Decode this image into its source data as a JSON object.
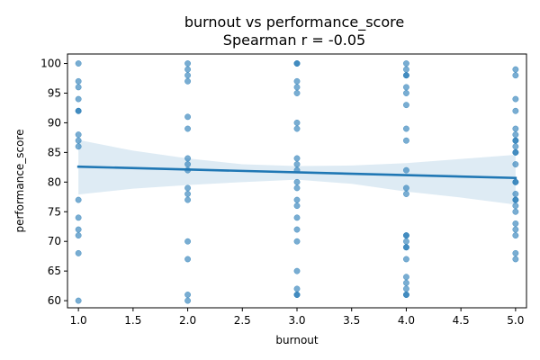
{
  "chart_data": {
    "type": "scatter",
    "title": "burnout vs performance_score",
    "subtitle": "Spearman r = -0.05",
    "xlabel": "burnout",
    "ylabel": "performance_score",
    "xlim": [
      0.9,
      5.1
    ],
    "ylim": [
      58.8,
      101.6
    ],
    "xticks": [
      "1.0",
      "1.5",
      "2.0",
      "2.5",
      "3.0",
      "3.5",
      "4.0",
      "4.5",
      "5.0"
    ],
    "yticks": [
      "60",
      "65",
      "70",
      "75",
      "80",
      "85",
      "90",
      "95",
      "100"
    ],
    "grid": false,
    "legend": "none",
    "colors": {
      "points": "#1f77b4",
      "line": "#1f77b4",
      "band": "#1f77b4"
    },
    "points": [
      [
        1,
        100
      ],
      [
        1,
        97
      ],
      [
        1,
        96
      ],
      [
        1,
        94
      ],
      [
        1,
        92
      ],
      [
        1,
        92
      ],
      [
        1,
        88
      ],
      [
        1,
        87
      ],
      [
        1,
        86
      ],
      [
        1,
        77
      ],
      [
        1,
        74
      ],
      [
        1,
        72
      ],
      [
        1,
        71
      ],
      [
        1,
        68
      ],
      [
        1,
        60
      ],
      [
        2,
        100
      ],
      [
        2,
        99
      ],
      [
        2,
        98
      ],
      [
        2,
        97
      ],
      [
        2,
        91
      ],
      [
        2,
        89
      ],
      [
        2,
        84
      ],
      [
        2,
        83
      ],
      [
        2,
        82
      ],
      [
        2,
        79
      ],
      [
        2,
        78
      ],
      [
        2,
        77
      ],
      [
        2,
        70
      ],
      [
        2,
        67
      ],
      [
        2,
        61
      ],
      [
        2,
        60
      ],
      [
        3,
        100
      ],
      [
        3,
        100
      ],
      [
        3,
        97
      ],
      [
        3,
        96
      ],
      [
        3,
        95
      ],
      [
        3,
        90
      ],
      [
        3,
        89
      ],
      [
        3,
        84
      ],
      [
        3,
        83
      ],
      [
        3,
        82
      ],
      [
        3,
        80
      ],
      [
        3,
        79
      ],
      [
        3,
        77
      ],
      [
        3,
        76
      ],
      [
        3,
        74
      ],
      [
        3,
        72
      ],
      [
        3,
        70
      ],
      [
        3,
        65
      ],
      [
        3,
        62
      ],
      [
        3,
        61
      ],
      [
        3,
        61
      ],
      [
        4,
        100
      ],
      [
        4,
        99
      ],
      [
        4,
        98
      ],
      [
        4,
        98
      ],
      [
        4,
        96
      ],
      [
        4,
        95
      ],
      [
        4,
        93
      ],
      [
        4,
        89
      ],
      [
        4,
        87
      ],
      [
        4,
        82
      ],
      [
        4,
        79
      ],
      [
        4,
        78
      ],
      [
        4,
        71
      ],
      [
        4,
        71
      ],
      [
        4,
        70
      ],
      [
        4,
        69
      ],
      [
        4,
        69
      ],
      [
        4,
        67
      ],
      [
        4,
        64
      ],
      [
        4,
        63
      ],
      [
        4,
        62
      ],
      [
        4,
        61
      ],
      [
        4,
        61
      ],
      [
        5,
        99
      ],
      [
        5,
        98
      ],
      [
        5,
        94
      ],
      [
        5,
        92
      ],
      [
        5,
        89
      ],
      [
        5,
        88
      ],
      [
        5,
        87
      ],
      [
        5,
        87
      ],
      [
        5,
        86
      ],
      [
        5,
        85
      ],
      [
        5,
        85
      ],
      [
        5,
        83
      ],
      [
        5,
        80
      ],
      [
        5,
        80
      ],
      [
        5,
        78
      ],
      [
        5,
        77
      ],
      [
        5,
        77
      ],
      [
        5,
        76
      ],
      [
        5,
        75
      ],
      [
        5,
        73
      ],
      [
        5,
        72
      ],
      [
        5,
        71
      ],
      [
        5,
        68
      ],
      [
        5,
        67
      ]
    ],
    "regression": {
      "x": [
        1.0,
        5.0
      ],
      "y": [
        82.6,
        80.7
      ]
    },
    "confidence_band": {
      "x": [
        1.0,
        1.5,
        2.0,
        2.5,
        3.0,
        3.5,
        4.0,
        4.5,
        5.0
      ],
      "upper": [
        87.1,
        85.3,
        84.0,
        83.0,
        82.7,
        82.8,
        83.2,
        83.9,
        84.6
      ],
      "lower": [
        77.9,
        78.9,
        79.5,
        80.0,
        80.4,
        79.7,
        78.4,
        77.4,
        76.2
      ]
    }
  }
}
